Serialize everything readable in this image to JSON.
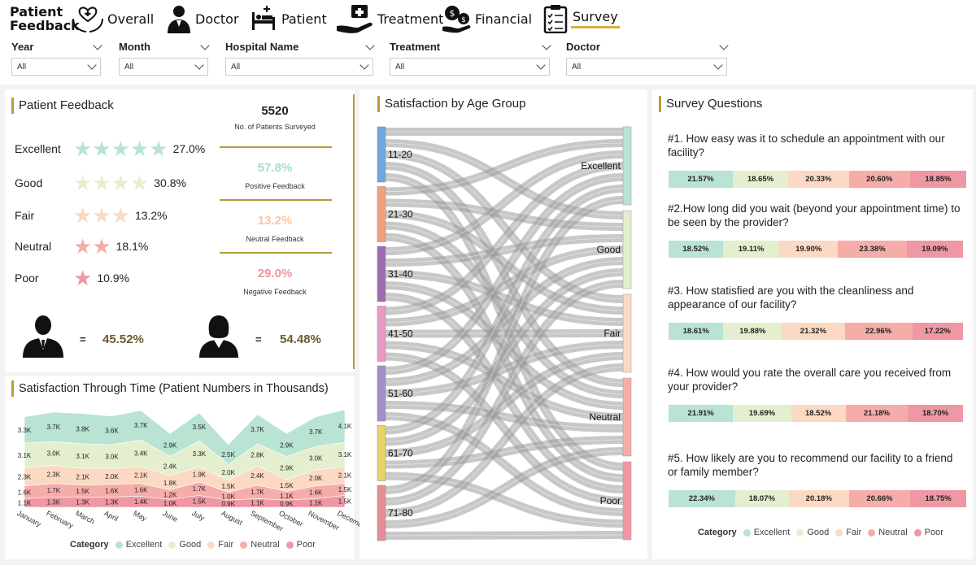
{
  "brand": {
    "line1": "Patient",
    "line2": "Feedback"
  },
  "nav": [
    {
      "label": "Overall",
      "icon": "heart-hands-icon"
    },
    {
      "label": "Doctor",
      "icon": "doctor-icon"
    },
    {
      "label": "Patient",
      "icon": "patient-bed-icon"
    },
    {
      "label": "Treatment",
      "icon": "medkit-hand-icon"
    },
    {
      "label": "Financial",
      "icon": "money-icon"
    },
    {
      "label": "Survey",
      "icon": "clipboard-icon",
      "active": true
    }
  ],
  "filters": [
    {
      "label": "Year",
      "value": "All"
    },
    {
      "label": "Month",
      "value": "All"
    },
    {
      "label": "Hospital Name",
      "value": "All"
    },
    {
      "label": "Treatment",
      "value": "All"
    },
    {
      "label": "Doctor",
      "value": "All"
    }
  ],
  "feedback": {
    "title": "Patient Feedback",
    "ratings": [
      {
        "label": "Excellent",
        "stars": 5,
        "pct": "27.0%",
        "color": "#b9e3d3"
      },
      {
        "label": "Good",
        "stars": 4,
        "pct": "30.8%",
        "color": "#e4efcf"
      },
      {
        "label": "Fair",
        "stars": 3,
        "pct": "13.2%",
        "color": "#fbd9c2"
      },
      {
        "label": "Neutral",
        "stars": 2,
        "pct": "18.1%",
        "color": "#f5adaa"
      },
      {
        "label": "Poor",
        "stars": 1,
        "pct": "10.9%",
        "color": "#ef97a3"
      }
    ],
    "kpis": [
      {
        "value": "5520",
        "label": "No. of Patients Surveyed",
        "color": "#111"
      },
      {
        "value": "57.8%",
        "label": "Positive Feedback",
        "color": "#a8dcc6"
      },
      {
        "value": "13.2%",
        "label": "Neutral Feedback",
        "color": "#f7c6a6"
      },
      {
        "value": "29.0%",
        "label": "Negative Feedback",
        "color": "#ef93a0"
      }
    ],
    "gender": {
      "male_eq": "=",
      "male": "45.52%",
      "female_eq": "=",
      "female": "54.48%"
    }
  },
  "time": {
    "title": "Satisfaction Through Time (Patient Numbers in Thousands)",
    "months": [
      "January",
      "February",
      "March",
      "April",
      "May",
      "June",
      "July",
      "August",
      "September",
      "October",
      "November",
      "December"
    ],
    "legend_title": "Category",
    "categories": [
      "Excellent",
      "Good",
      "Fair",
      "Neutral",
      "Poor"
    ],
    "colors": [
      "#b9e3d3",
      "#e4efcf",
      "#fbd9c2",
      "#f5adaa",
      "#ef97a3"
    ]
  },
  "chart_data": [
    {
      "type": "area",
      "title": "Satisfaction Through Time (Patient Numbers in Thousands)",
      "x": [
        "January",
        "February",
        "March",
        "April",
        "May",
        "June",
        "July",
        "August",
        "September",
        "October",
        "November",
        "December"
      ],
      "series": [
        {
          "name": "Poor",
          "values": [
            1.1,
            1.3,
            1.3,
            1.3,
            1.4,
            1.0,
            1.5,
            0.9,
            1.1,
            0.9,
            1.1,
            1.5
          ]
        },
        {
          "name": "Neutral",
          "values": [
            1.6,
            1.7,
            1.5,
            1.6,
            1.6,
            1.2,
            1.7,
            1.0,
            1.7,
            1.1,
            1.6,
            1.5
          ]
        },
        {
          "name": "Fair",
          "values": [
            2.3,
            2.3,
            2.1,
            2.0,
            2.1,
            1.8,
            1.9,
            1.5,
            2.4,
            1.5,
            2.0,
            2.1
          ]
        },
        {
          "name": "Good",
          "values": [
            3.1,
            3.0,
            3.1,
            3.0,
            3.4,
            2.4,
            3.3,
            2.0,
            2.8,
            2.9,
            3.0,
            3.1
          ]
        },
        {
          "name": "Excellent",
          "values": [
            3.3,
            3.7,
            3.8,
            3.6,
            3.7,
            2.9,
            3.5,
            2.5,
            3.7,
            2.9,
            3.7,
            4.1
          ]
        }
      ],
      "value_labels": [
        [
          "1.1K",
          "1.3K",
          "1.3K",
          "1.3K",
          "1.4K",
          "1.0K",
          "1.5K",
          "0.9K",
          "1.1K",
          "0.9K",
          "1.1K",
          "1.5K"
        ],
        [
          "1.6K",
          "1.7K",
          "1.5K",
          "1.6K",
          "1.6K",
          "1.2K",
          "1.7K",
          "1.0K",
          "1.7K",
          "1.1K",
          "1.6K",
          "1.5K"
        ],
        [
          "2.3K",
          "2.3K",
          "2.1K",
          "2.0K",
          "2.1K",
          "1.8K",
          "1.9K",
          "1.5K",
          "2.4K",
          "1.5K",
          "2.0K",
          "2.1K"
        ],
        [
          "3.1K",
          "3.0K",
          "3.1K",
          "3.0K",
          "3.4K",
          "2.4K",
          "3.3K",
          "2.0K",
          "2.8K",
          "2.9K",
          "3.0K",
          "3.1K"
        ],
        [
          "3.3K",
          "3.7K",
          "3.8K",
          "3.6K",
          "3.7K",
          "2.9K",
          "3.5K",
          "2.5K",
          "3.7K",
          "2.9K",
          "3.7K",
          "4.1K"
        ]
      ]
    },
    {
      "type": "sankey",
      "title": "Satisfaction by Age Group",
      "sources": [
        "11-20",
        "21-30",
        "31-40",
        "41-50",
        "51-60",
        "61-70",
        "71-80"
      ],
      "targets": [
        "Excellent",
        "Good",
        "Fair",
        "Neutral",
        "Poor"
      ],
      "source_colors": [
        "#6fa8dc",
        "#f2a07b",
        "#9e6cb0",
        "#e79ac6",
        "#a58ec9",
        "#e8d26a",
        "#e58e97"
      ],
      "target_colors": [
        "#b9e3d3",
        "#e4efcf",
        "#fbd9c2",
        "#f5adaa",
        "#ef97a3"
      ]
    },
    {
      "type": "bar",
      "title": "Survey Questions",
      "stacked": true,
      "categories": [
        "Excellent",
        "Good",
        "Fair",
        "Neutral",
        "Poor"
      ],
      "questions": [
        {
          "text": "#1. How easy was it to schedule an appointment with our facility?",
          "values": [
            21.57,
            18.65,
            20.33,
            20.6,
            18.85
          ],
          "labels": [
            "21.57%",
            "18.65%",
            "20.33%",
            "20.60%",
            "18.85%"
          ]
        },
        {
          "text": "#2.How long did you wait (beyond your appointment time) to be seen by the provider?",
          "values": [
            18.52,
            19.11,
            19.9,
            23.38,
            19.09
          ],
          "labels": [
            "18.52%",
            "19.11%",
            "19.90%",
            "23.38%",
            "19.09%"
          ]
        },
        {
          "text": "#3. How statisfied are you with the cleanliness and appearance of our facility?",
          "values": [
            18.61,
            19.88,
            21.32,
            22.96,
            17.22
          ],
          "labels": [
            "18.61%",
            "19.88%",
            "21.32%",
            "22.96%",
            "17.22%"
          ]
        },
        {
          "text": "#4. How would you rate the overall care you received from your provider?",
          "values": [
            21.91,
            19.69,
            18.52,
            21.18,
            18.7
          ],
          "labels": [
            "21.91%",
            "19.69%",
            "18.52%",
            "21.18%",
            "18.70%"
          ]
        },
        {
          "text": "#5. How likely are you to recommend our facility to a friend or family member?",
          "values": [
            22.34,
            18.07,
            20.18,
            20.66,
            18.75
          ],
          "labels": [
            "22.34%",
            "18.07%",
            "20.18%",
            "20.66%",
            "18.75%"
          ]
        }
      ],
      "colors": [
        "#b9e3d3",
        "#e4efcf",
        "#fbd9c2",
        "#f5adaa",
        "#ef97a3"
      ],
      "legend_title": "Category"
    }
  ],
  "sankey_title": "Satisfaction by Age Group",
  "survey_title": "Survey Questions"
}
